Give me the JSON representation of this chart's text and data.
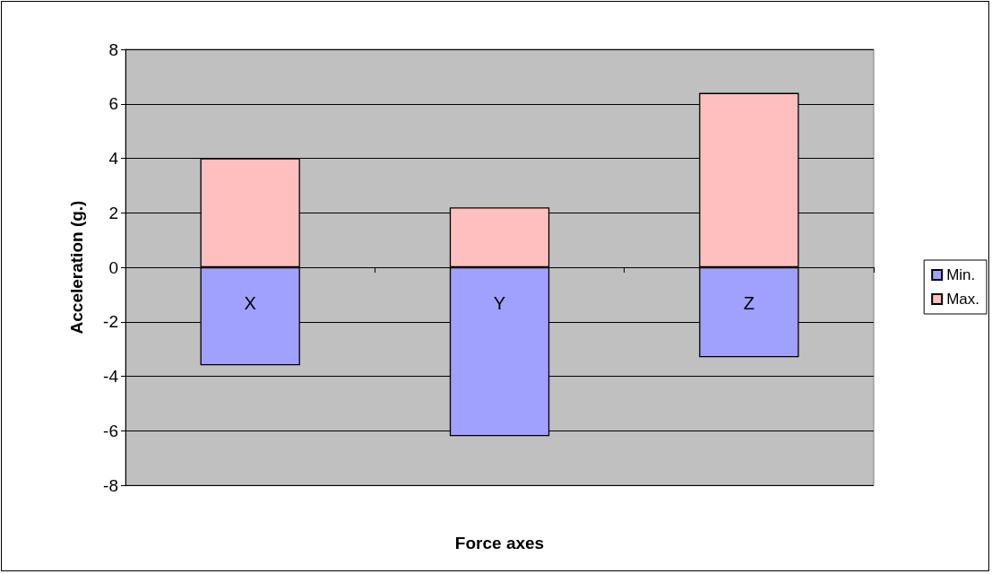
{
  "chart_data": {
    "type": "bar",
    "stacked": true,
    "xlabel": "Force axes",
    "ylabel": "Acceleration (g.)",
    "categories": [
      "X",
      "Y",
      "Z"
    ],
    "series": [
      {
        "name": "Min.",
        "color": "#a0a0ff",
        "values": [
          -3.6,
          -6.2,
          -3.3
        ]
      },
      {
        "name": "Max.",
        "color": "#ffbfbf",
        "values": [
          4.0,
          2.2,
          6.4
        ]
      }
    ],
    "ylim": [
      -8,
      8
    ],
    "yticks": [
      -8,
      -6,
      -4,
      -2,
      0,
      2,
      4,
      6,
      8
    ],
    "grid": "y",
    "legend": "right"
  }
}
